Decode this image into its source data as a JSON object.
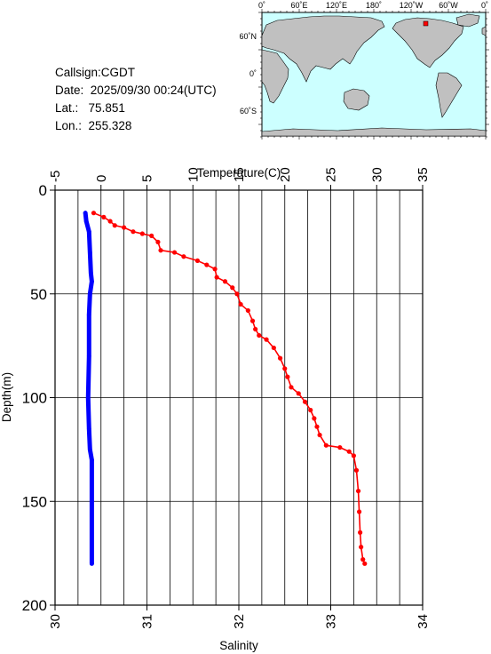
{
  "station": {
    "callsign_label": "Callsign:",
    "callsign": "CGDT",
    "date_label": "Date:",
    "date": "2025/09/30 00:24(UTC)",
    "lat_label": "Lat.:",
    "lat": "75.851",
    "lon_label": "Lon.:",
    "lon": "255.328"
  },
  "map": {
    "lon_ticks": [
      "0˚",
      "60˚E",
      "120˚E",
      "180˚",
      "120˚W",
      "60˚W",
      "0˚"
    ],
    "lat_ticks": [
      "60˚N",
      "0˚",
      "60˚S"
    ],
    "ocean_color": "#ccffff",
    "land_color": "#c0c0c0",
    "marker_color": "#ff0000"
  },
  "chart_data": {
    "type": "line",
    "temperature_axis": {
      "label": "Temperature(C)",
      "range": [
        -5,
        35
      ],
      "ticks": [
        "-5",
        "0",
        "5",
        "10",
        "15",
        "20",
        "25",
        "30",
        "35"
      ]
    },
    "salinity_axis": {
      "label": "Salinity",
      "range": [
        30,
        34
      ],
      "ticks": [
        "30",
        "31",
        "32",
        "33",
        "34"
      ]
    },
    "depth_axis": {
      "label": "Depth(m)",
      "range": [
        0,
        200
      ],
      "ticks": [
        "0",
        "50",
        "100",
        "150",
        "200"
      ],
      "inverted": true
    },
    "grid": true,
    "series": [
      {
        "color": "#ff0000",
        "axis": "temperature",
        "points": [
          [
            -0.8,
            11
          ],
          [
            0.3,
            13
          ],
          [
            1.0,
            15
          ],
          [
            1.5,
            17
          ],
          [
            2.5,
            18
          ],
          [
            3.5,
            20
          ],
          [
            4.5,
            21
          ],
          [
            5.5,
            22
          ],
          [
            6.2,
            25
          ],
          [
            6.5,
            29
          ],
          [
            8.0,
            30
          ],
          [
            9.0,
            32
          ],
          [
            10.5,
            34
          ],
          [
            11.5,
            36
          ],
          [
            12.4,
            38
          ],
          [
            12.6,
            42
          ],
          [
            13.5,
            44
          ],
          [
            14.3,
            47
          ],
          [
            14.8,
            50
          ],
          [
            15.2,
            55
          ],
          [
            16.0,
            58
          ],
          [
            16.5,
            63
          ],
          [
            16.8,
            67
          ],
          [
            17.2,
            70
          ],
          [
            18.0,
            72
          ],
          [
            18.8,
            76
          ],
          [
            19.5,
            81
          ],
          [
            20.0,
            86
          ],
          [
            20.3,
            90
          ],
          [
            20.7,
            95
          ],
          [
            21.5,
            98
          ],
          [
            22.2,
            102
          ],
          [
            22.8,
            106
          ],
          [
            23.2,
            110
          ],
          [
            23.5,
            114
          ],
          [
            23.8,
            118
          ],
          [
            24.5,
            123
          ],
          [
            26.0,
            124
          ],
          [
            27.0,
            126
          ],
          [
            27.5,
            128
          ],
          [
            27.8,
            135
          ],
          [
            28.0,
            145
          ],
          [
            28.1,
            155
          ],
          [
            28.2,
            165
          ],
          [
            28.3,
            172
          ],
          [
            28.5,
            178
          ],
          [
            28.7,
            180
          ]
        ]
      },
      {
        "color": "#0000ff",
        "axis": "salinity",
        "points": [
          [
            30.33,
            11
          ],
          [
            30.34,
            15
          ],
          [
            30.37,
            20
          ],
          [
            30.38,
            30
          ],
          [
            30.39,
            40
          ],
          [
            30.4,
            44
          ],
          [
            30.38,
            50
          ],
          [
            30.37,
            60
          ],
          [
            30.37,
            80
          ],
          [
            30.36,
            100
          ],
          [
            30.37,
            115
          ],
          [
            30.38,
            125
          ],
          [
            30.4,
            130
          ],
          [
            30.4,
            150
          ],
          [
            30.4,
            180
          ]
        ]
      }
    ]
  }
}
